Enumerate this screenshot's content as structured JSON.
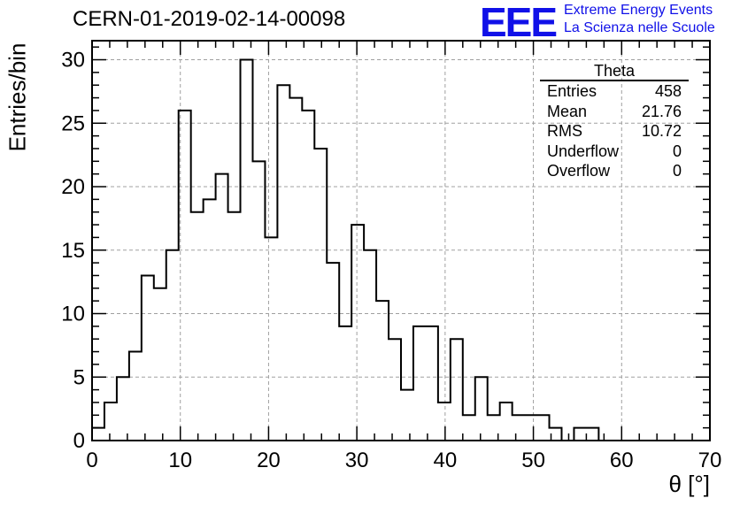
{
  "header": {
    "title": "CERN-01-2019-02-14-00098",
    "logo_text": "EEE",
    "logo_line1": "Extreme Energy Events",
    "logo_line2": "La Scienza nelle Scuole"
  },
  "colors": {
    "logo": "#1010e8",
    "line": "#000000",
    "grid": "#a0a0a0"
  },
  "stats_box": {
    "title": "Theta",
    "rows": [
      {
        "label": "Entries",
        "value": "458"
      },
      {
        "label": "Mean",
        "value": "21.76"
      },
      {
        "label": "RMS",
        "value": "10.72"
      },
      {
        "label": "Underflow",
        "value": "0"
      },
      {
        "label": "Overflow",
        "value": "0"
      }
    ]
  },
  "chart_data": {
    "type": "bar",
    "style": "step-histogram",
    "title": "CERN-01-2019-02-14-00098",
    "xlabel": "θ [°]",
    "ylabel": "Entries/bin",
    "xlim": [
      0,
      70
    ],
    "ylim": [
      0,
      31.5
    ],
    "bin_width": 1.4,
    "xticks": [
      0,
      10,
      20,
      30,
      40,
      50,
      60,
      70
    ],
    "yticks": [
      0,
      5,
      10,
      15,
      20,
      25,
      30
    ],
    "grid": true,
    "values": [
      1,
      3,
      5,
      7,
      13,
      12,
      15,
      26,
      18,
      19,
      21,
      18,
      30,
      22,
      16,
      28,
      27,
      26,
      23,
      14,
      9,
      17,
      15,
      11,
      8,
      4,
      9,
      9,
      3,
      8,
      2,
      5,
      2,
      3,
      2,
      2,
      2,
      1,
      0,
      1,
      1,
      0,
      0,
      0,
      0,
      0,
      0,
      0,
      0,
      0
    ]
  }
}
